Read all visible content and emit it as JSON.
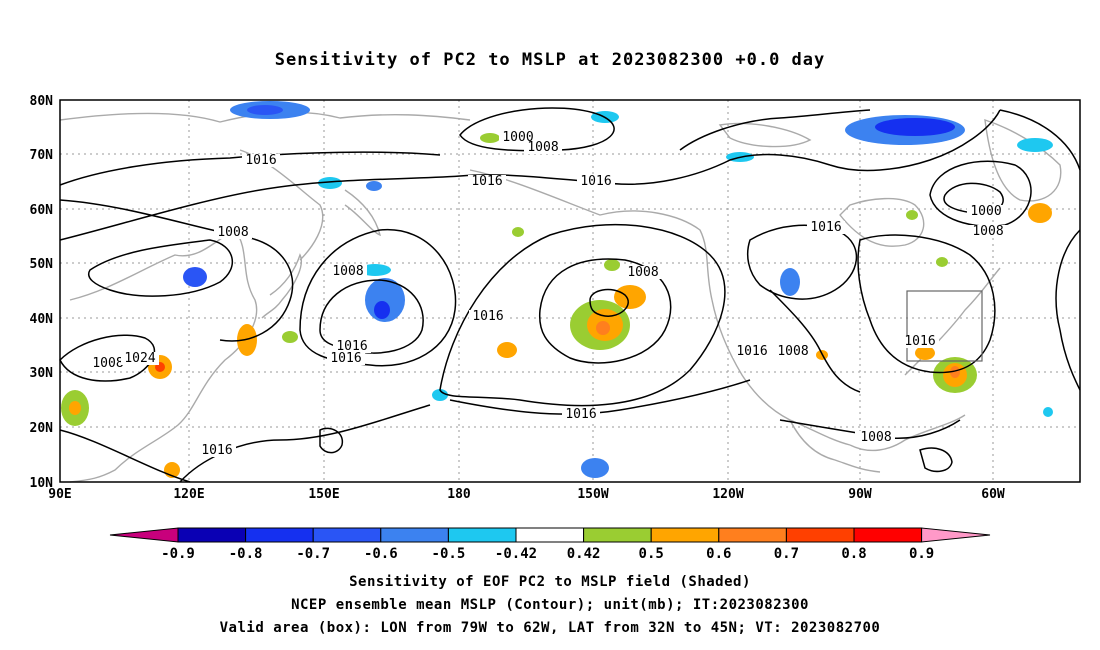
{
  "title": "Sensitivity of PC2 to MSLP at 2023082300 +0.0 day",
  "axes": {
    "lat_labels": [
      "80N",
      "70N",
      "60N",
      "50N",
      "40N",
      "30N",
      "20N",
      "10N"
    ],
    "lon_labels": [
      "90E",
      "120E",
      "150E",
      "180",
      "150W",
      "120W",
      "90W",
      "60W"
    ]
  },
  "contour_labels": [
    {
      "text": "1000"
    },
    {
      "text": "1008"
    },
    {
      "text": "1016"
    },
    {
      "text": "1016"
    },
    {
      "text": "1016"
    },
    {
      "text": "1008"
    },
    {
      "text": "1008"
    },
    {
      "text": "1016"
    },
    {
      "text": "1016"
    },
    {
      "text": "1016"
    },
    {
      "text": "1008"
    },
    {
      "text": "1024"
    },
    {
      "text": "1008"
    },
    {
      "text": "1016"
    },
    {
      "text": "1008"
    },
    {
      "text": "1016"
    },
    {
      "text": "1016"
    },
    {
      "text": "1008"
    },
    {
      "text": "1016"
    },
    {
      "text": "1000"
    },
    {
      "text": "1008"
    },
    {
      "text": "1016"
    },
    {
      "text": "1008"
    }
  ],
  "colorbar": {
    "colors": [
      "#0a00b4",
      "#1530f0",
      "#2a55f5",
      "#3c82f0",
      "#1ec8f0",
      "#ffffff",
      "#9acd32",
      "#ffa500",
      "#ff7f1e",
      "#ff4000",
      "#ff0000"
    ],
    "low_color": "#c8007c",
    "high_color": "#ff99c8",
    "labels": [
      "-0.9",
      "-0.8",
      "-0.7",
      "-0.6",
      "-0.5",
      "-0.42",
      "0.42",
      "0.5",
      "0.6",
      "0.7",
      "0.8",
      "0.9"
    ]
  },
  "captions": {
    "line1": "Sensitivity of EOF PC2 to MSLP field (Shaded)",
    "line2": "NCEP ensemble mean MSLP (Contour); unit(mb); IT:2023082300",
    "line3": "Valid area (box): LON from 79W to 62W, LAT from 32N to 45N; VT: 2023082700"
  }
}
